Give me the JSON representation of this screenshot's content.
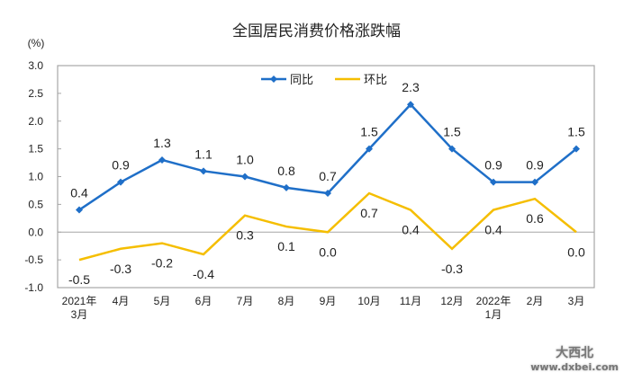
{
  "chart_data": {
    "type": "line",
    "title": "全国居民消费价格涨跌幅",
    "ylabel": "(%)",
    "ylim": [
      -1.0,
      3.0
    ],
    "yticks": [
      "3.0",
      "2.5",
      "2.0",
      "1.5",
      "1.0",
      "0.5",
      "0.0",
      "-0.5",
      "-1.0"
    ],
    "categories": [
      [
        "2021年",
        "3月"
      ],
      [
        "4月"
      ],
      [
        "5月"
      ],
      [
        "6月"
      ],
      [
        "7月"
      ],
      [
        "8月"
      ],
      [
        "9月"
      ],
      [
        "10月"
      ],
      [
        "11月"
      ],
      [
        "12月"
      ],
      [
        "2022年",
        "1月"
      ],
      [
        "2月"
      ],
      [
        "3月"
      ]
    ],
    "legend_position": "top-center",
    "series": [
      {
        "name": "同比",
        "color": "#1F6FC8",
        "values": [
          0.4,
          0.9,
          1.3,
          1.1,
          1.0,
          0.8,
          0.7,
          1.5,
          2.3,
          1.5,
          0.9,
          0.9,
          1.5
        ]
      },
      {
        "name": "环比",
        "color": "#F5BE00",
        "values": [
          -0.5,
          -0.3,
          -0.2,
          -0.4,
          0.3,
          0.1,
          0.0,
          0.7,
          0.4,
          -0.3,
          0.4,
          0.6,
          0.0
        ]
      }
    ]
  },
  "watermark": {
    "text": "大西北",
    "url_text": "www.dxbei.com"
  }
}
